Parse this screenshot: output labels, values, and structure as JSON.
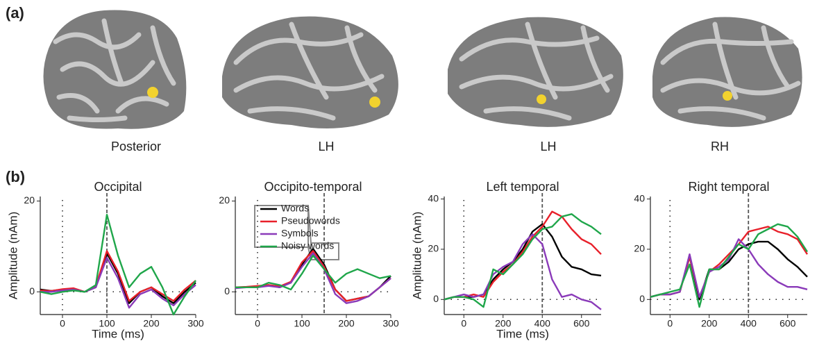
{
  "panel_a": {
    "label": "(a)",
    "views": [
      "Posterior",
      "LH",
      "LH",
      "RH"
    ]
  },
  "panel_b": {
    "label": "(b)"
  },
  "chart_data": [
    {
      "type": "line",
      "title": "Occipital",
      "xlabel": "Time (ms)",
      "ylabel": "Amplitude (nAm)",
      "x": [
        -50,
        -25,
        0,
        25,
        50,
        75,
        100,
        125,
        150,
        175,
        200,
        225,
        250,
        275,
        300
      ],
      "xlim": [
        -50,
        300
      ],
      "xticks": [
        0,
        100,
        200,
        300
      ],
      "ylim": [
        -5,
        21
      ],
      "yticks": [
        0,
        20
      ],
      "marker_x": 100,
      "series": [
        {
          "color": "#000000",
          "values": [
            0.5,
            0.2,
            0.5,
            0.5,
            0,
            1,
            8.5,
            4,
            -2.5,
            0,
            1,
            -1,
            -2.5,
            0,
            2
          ]
        },
        {
          "color": "#e8202a",
          "values": [
            0.3,
            0.2,
            0.6,
            0.8,
            0,
            1.2,
            9,
            4.5,
            -2,
            0,
            1,
            -0.5,
            -2,
            0.5,
            2.5
          ]
        },
        {
          "color": "#8a3ab9",
          "values": [
            0,
            0,
            0.3,
            0.5,
            0,
            1,
            7.5,
            3,
            -3.5,
            -0.5,
            0.5,
            -1.5,
            -3,
            -0.5,
            1.5
          ]
        },
        {
          "color": "#1fa64a",
          "values": [
            0,
            -0.5,
            0,
            0.3,
            0,
            1.5,
            17,
            8,
            1,
            4,
            5.5,
            1,
            -5,
            -1,
            2.5
          ]
        }
      ]
    },
    {
      "type": "line",
      "title": "Occipito-temporal",
      "x": [
        -50,
        -25,
        0,
        25,
        50,
        75,
        100,
        125,
        150,
        175,
        200,
        225,
        250,
        275,
        300
      ],
      "xlim": [
        -50,
        300
      ],
      "xticks": [
        0,
        100,
        200,
        300
      ],
      "ylim": [
        -5,
        21
      ],
      "yticks": [
        0,
        20
      ],
      "marker_x": 150,
      "legend": "upper left",
      "series": [
        {
          "name": "Words",
          "color": "#000000",
          "values": [
            1,
            1,
            1.2,
            1.5,
            1,
            2,
            6,
            9.5,
            6,
            0.5,
            -2,
            -1.5,
            -1,
            1,
            3.5
          ]
        },
        {
          "name": "Pseudowords",
          "color": "#e8202a",
          "values": [
            1,
            1.1,
            1.3,
            1.5,
            1.2,
            2.2,
            6.5,
            9,
            5.5,
            0.5,
            -2,
            -1.5,
            -1,
            1,
            3
          ]
        },
        {
          "name": "Symbols",
          "color": "#8a3ab9",
          "values": [
            0.8,
            1,
            1,
            1.3,
            1,
            2,
            5.5,
            8.5,
            5,
            -0.5,
            -2.5,
            -2,
            -1,
            1,
            3
          ]
        },
        {
          "name": "Noisy words",
          "color": "#1fa64a",
          "values": [
            1,
            1,
            1,
            2,
            1.5,
            0.5,
            4,
            8,
            5,
            2,
            4,
            5,
            4,
            3,
            3.5
          ]
        }
      ]
    },
    {
      "type": "line",
      "title": "Left temporal",
      "xlabel": "Time (ms)",
      "ylabel": "Amplitude (nAm)",
      "x": [
        -100,
        -50,
        0,
        50,
        100,
        150,
        200,
        250,
        300,
        350,
        400,
        450,
        500,
        550,
        600,
        650,
        700
      ],
      "xlim": [
        -100,
        700
      ],
      "xticks": [
        0,
        200,
        400,
        600
      ],
      "ylim": [
        -6,
        41
      ],
      "yticks": [
        0,
        20,
        40
      ],
      "marker_x": 400,
      "series": [
        {
          "color": "#000000",
          "values": [
            0,
            1,
            1,
            1,
            2,
            8,
            12,
            15,
            20,
            27,
            30,
            25,
            17,
            13,
            12,
            10,
            9.5
          ]
        },
        {
          "color": "#e8202a",
          "values": [
            0,
            1,
            1,
            2,
            1,
            7,
            11,
            14,
            19,
            25,
            29,
            35,
            33,
            28,
            24,
            22,
            18
          ]
        },
        {
          "color": "#8a3ab9",
          "values": [
            0,
            1,
            2,
            1,
            2,
            10,
            13,
            15,
            22,
            26,
            22,
            8,
            1,
            2,
            0,
            -1,
            -4
          ]
        },
        {
          "color": "#1fa64a",
          "values": [
            0,
            1,
            1,
            0,
            -3,
            12,
            10,
            14,
            18,
            24,
            28,
            29,
            33,
            34,
            31,
            29,
            26
          ]
        }
      ]
    },
    {
      "type": "line",
      "title": "Right temporal",
      "x": [
        -100,
        -50,
        0,
        50,
        100,
        150,
        200,
        250,
        300,
        350,
        400,
        450,
        500,
        550,
        600,
        650,
        700
      ],
      "xlim": [
        -100,
        700
      ],
      "xticks": [
        0,
        200,
        400,
        600
      ],
      "ylim": [
        -6,
        41
      ],
      "yticks": [
        0,
        20,
        40
      ],
      "marker_x": 400,
      "series": [
        {
          "color": "#000000",
          "values": [
            1,
            2,
            2,
            3,
            17,
            0,
            12,
            12,
            15,
            20,
            22,
            23,
            23,
            20,
            16,
            13,
            9
          ]
        },
        {
          "color": "#e8202a",
          "values": [
            1,
            2,
            2,
            3,
            17,
            1,
            11,
            14,
            18,
            22,
            27,
            28,
            29,
            27,
            26,
            24,
            18
          ]
        },
        {
          "color": "#8a3ab9",
          "values": [
            1,
            2,
            2,
            3,
            18,
            1,
            11,
            13,
            16,
            24,
            20,
            14,
            10,
            7,
            5,
            5,
            4
          ]
        },
        {
          "color": "#1fa64a",
          "values": [
            1,
            2,
            3,
            4,
            14,
            -3,
            12,
            12,
            17,
            22,
            20,
            26,
            28,
            30,
            29,
            25,
            19
          ]
        }
      ]
    }
  ]
}
